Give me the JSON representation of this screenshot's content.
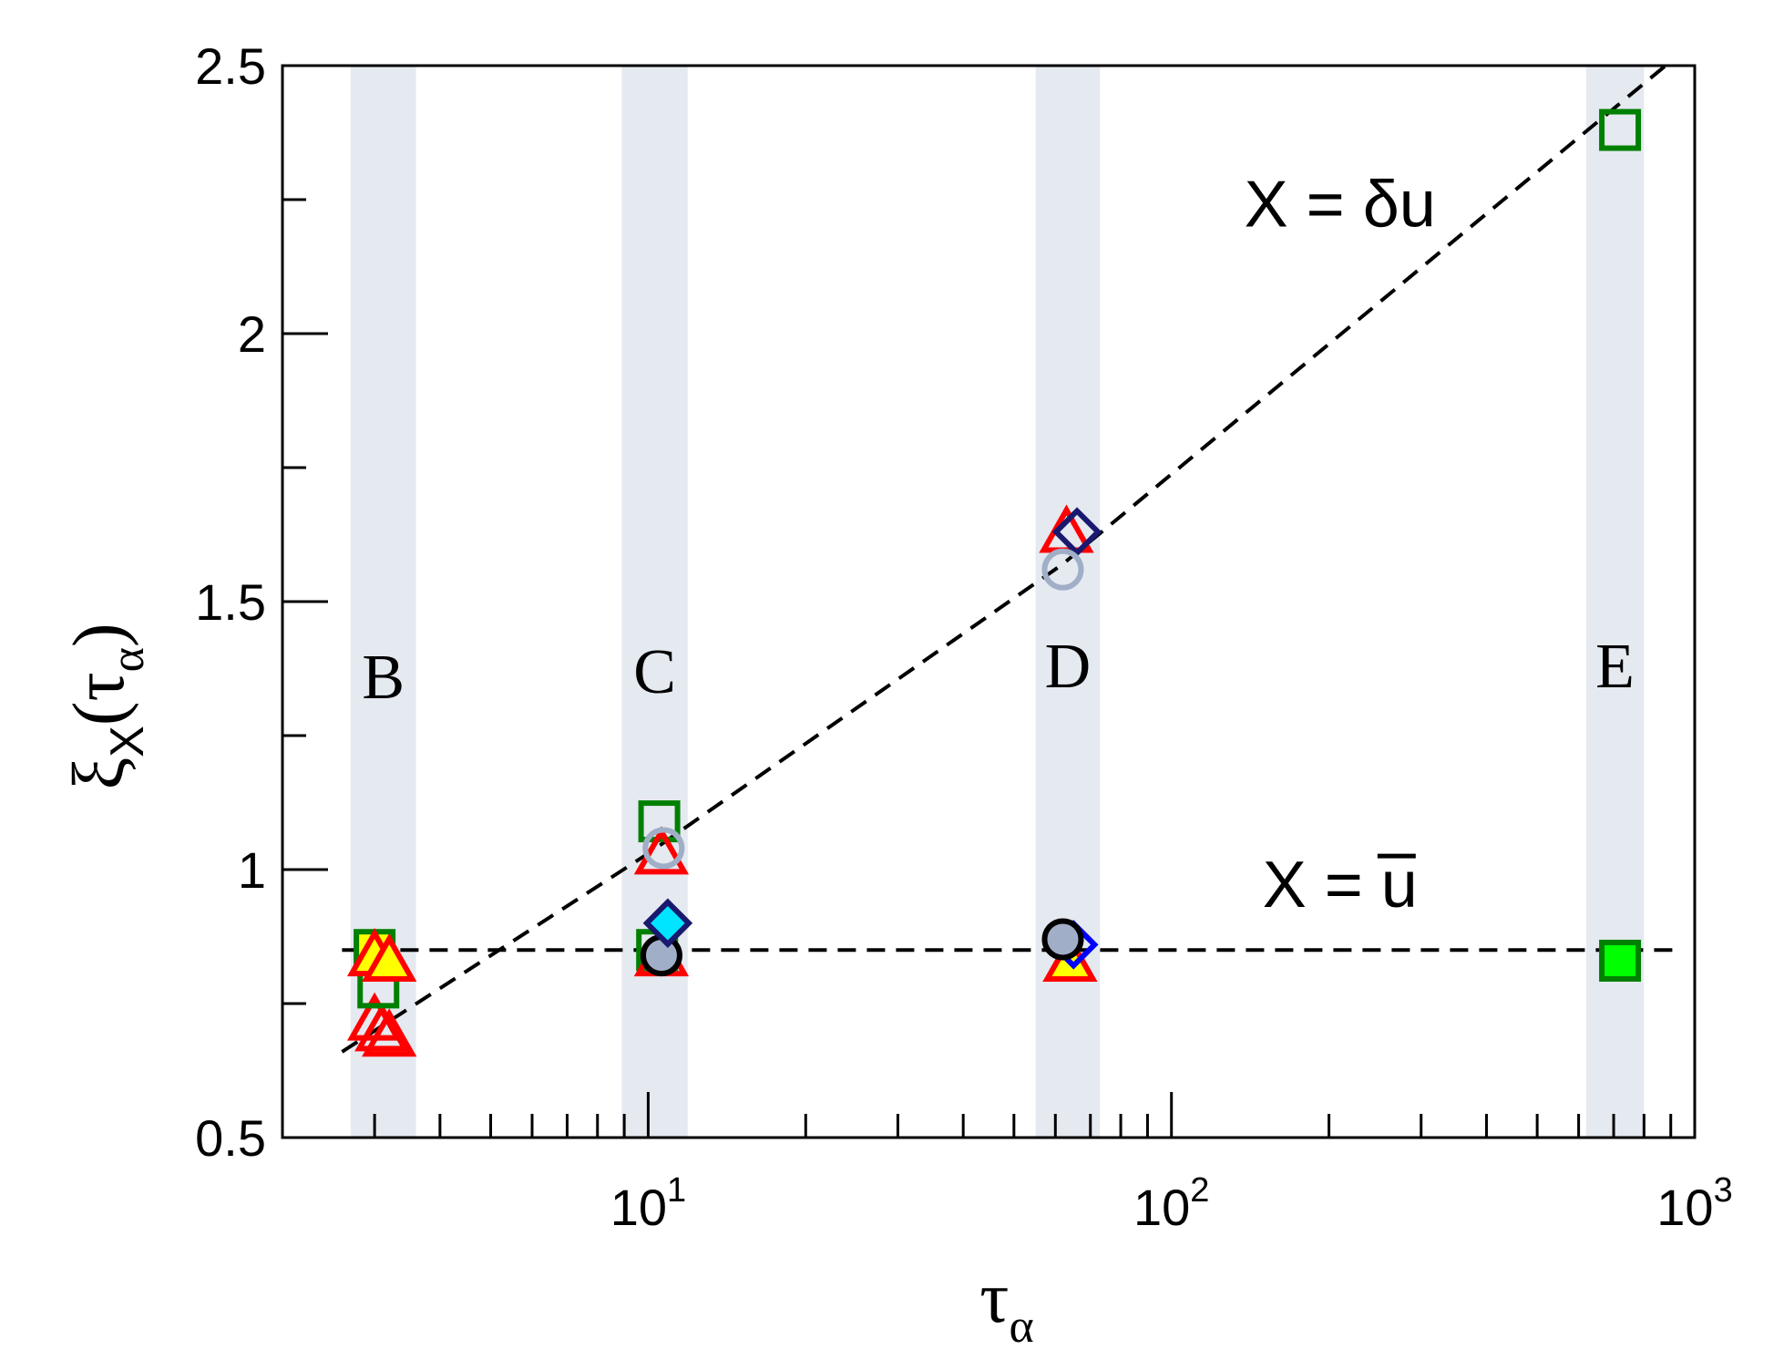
{
  "chart_data": {
    "type": "scatter",
    "xscale": "log",
    "xlim": [
      2.0,
      1000
    ],
    "ylim": [
      0.5,
      2.5
    ],
    "xlabel": "τ",
    "xlabel_subscript": "α",
    "ylabel": "ξ",
    "ylabel_subscript": "X",
    "ylabel_arg": "τ",
    "ylabel_arg_subscript": "α",
    "x_ticks": [
      {
        "value": 10,
        "base": "10",
        "exp": "1"
      },
      {
        "value": 100,
        "base": "10",
        "exp": "2"
      },
      {
        "value": 1000,
        "base": "10",
        "exp": "3"
      }
    ],
    "y_ticks": [
      {
        "value": 0.5,
        "label": "0.5"
      },
      {
        "value": 1.0,
        "label": "1"
      },
      {
        "value": 1.5,
        "label": "1.5"
      },
      {
        "value": 2.0,
        "label": "2"
      },
      {
        "value": 2.5,
        "label": "2.5"
      }
    ],
    "bands": [
      {
        "label": "B",
        "x_range": [
          2.7,
          3.6
        ],
        "label_y": 1.32
      },
      {
        "label": "C",
        "x_range": [
          8.9,
          11.9
        ],
        "label_y": 1.33
      },
      {
        "label": "D",
        "x_range": [
          55,
          73
        ],
        "label_y": 1.34
      },
      {
        "label": "E",
        "x_range": [
          620,
          800
        ],
        "label_y": 1.34
      }
    ],
    "band_color": "#e5e9f0",
    "lines": [
      {
        "name": "X = δu",
        "style": "dashed",
        "points": [
          [
            2.6,
            0.66
          ],
          [
            10,
            1.03
          ],
          [
            62,
            1.57
          ],
          [
            880,
            2.5
          ]
        ]
      },
      {
        "name": "X = u̅",
        "style": "dashed",
        "points": [
          [
            2.6,
            0.85
          ],
          [
            950,
            0.85
          ]
        ]
      }
    ],
    "annotations": [
      {
        "text": "X = δu",
        "x": 210,
        "y": 2.2
      },
      {
        "text": "X = u",
        "x": 210,
        "y": 0.93
      }
    ],
    "markers": [
      {
        "x": 3.0,
        "y": 0.72,
        "shape": "triangle",
        "fill": "none",
        "stroke": "#ff0000"
      },
      {
        "x": 3.2,
        "y": 0.69,
        "shape": "triangle",
        "fill": "none",
        "stroke": "#ff0000"
      },
      {
        "x": 3.1,
        "y": 0.7,
        "shape": "triangle",
        "fill": "none",
        "stroke": "#ff0000"
      },
      {
        "x": 3.05,
        "y": 0.78,
        "shape": "square",
        "fill": "none",
        "stroke": "#008000"
      },
      {
        "x": 3.0,
        "y": 0.85,
        "shape": "square",
        "fill": "#ffff00",
        "stroke": "#008000"
      },
      {
        "x": 3.0,
        "y": 0.84,
        "shape": "triangle",
        "fill": "#ffff00",
        "stroke": "#ff0000"
      },
      {
        "x": 3.2,
        "y": 0.83,
        "shape": "triangle",
        "fill": "#ffff00",
        "stroke": "#ff0000"
      },
      {
        "x": 10.5,
        "y": 1.09,
        "shape": "square",
        "fill": "none",
        "stroke": "#008000"
      },
      {
        "x": 10.6,
        "y": 1.03,
        "shape": "triangle",
        "fill": "none",
        "stroke": "#ff0000"
      },
      {
        "x": 10.7,
        "y": 1.04,
        "shape": "circle",
        "fill": "none",
        "stroke": "#a0aec8"
      },
      {
        "x": 10.4,
        "y": 0.85,
        "shape": "square",
        "fill": "none",
        "stroke": "#008000"
      },
      {
        "x": 10.6,
        "y": 0.84,
        "shape": "triangle",
        "fill": "none",
        "stroke": "#ff0000"
      },
      {
        "x": 10.6,
        "y": 0.84,
        "shape": "circle",
        "fill": "#a0aec8",
        "stroke": "#000000"
      },
      {
        "x": 10.9,
        "y": 0.9,
        "shape": "diamond",
        "fill": "#00e5ff",
        "stroke": "#191970"
      },
      {
        "x": 63,
        "y": 1.63,
        "shape": "triangle",
        "fill": "none",
        "stroke": "#ff0000"
      },
      {
        "x": 66,
        "y": 1.63,
        "shape": "diamond",
        "fill": "none",
        "stroke": "#191970"
      },
      {
        "x": 62,
        "y": 1.56,
        "shape": "circle",
        "fill": "none",
        "stroke": "#a0aec8"
      },
      {
        "x": 64,
        "y": 0.83,
        "shape": "triangle",
        "fill": "#ffff00",
        "stroke": "#ff0000"
      },
      {
        "x": 65,
        "y": 0.86,
        "shape": "diamond",
        "fill": "none",
        "stroke": "#0000ff"
      },
      {
        "x": 62,
        "y": 0.87,
        "shape": "circle",
        "fill": "#a0aec8",
        "stroke": "#000000"
      },
      {
        "x": 720,
        "y": 2.38,
        "shape": "square",
        "fill": "none",
        "stroke": "#008000"
      },
      {
        "x": 720,
        "y": 0.83,
        "shape": "square",
        "fill": "#00ff00",
        "stroke": "#008000"
      }
    ]
  }
}
